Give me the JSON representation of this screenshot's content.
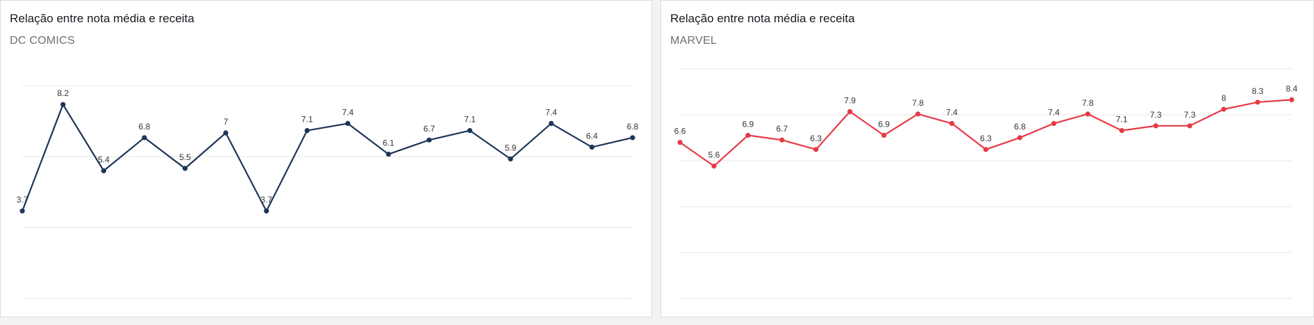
{
  "charts": [
    {
      "id": "dc",
      "title": "Relação entre nota média e receita",
      "subtitle": "DC COMICS",
      "color": "#1d3557"
    },
    {
      "id": "marvel",
      "title": "Relação entre nota média e receita",
      "subtitle": "MARVEL",
      "color": "#e63946"
    }
  ],
  "chart_data": [
    {
      "type": "line",
      "title": "Relação entre nota média e receita",
      "subtitle": "DC COMICS",
      "xlabel": "",
      "ylabel": "",
      "ylim": [
        2.5,
        9.5
      ],
      "grid": true,
      "series": [
        {
          "color": "#1d3557",
          "values": [
            3.7,
            8.2,
            5.4,
            6.8,
            5.5,
            7,
            3.7,
            7.1,
            7.4,
            6.1,
            6.7,
            7.1,
            5.9,
            7.4,
            6.4,
            6.8
          ],
          "labels": [
            "3.7",
            "8.2",
            "5.4",
            "6.8",
            "5.5",
            "7",
            "3.7",
            "7.1",
            "7.4",
            "6.1",
            "6.7",
            "7.1",
            "5.9",
            "7.4",
            "6.4",
            "6.8"
          ]
        }
      ]
    },
    {
      "type": "line",
      "title": "Relação entre nota média e receita",
      "subtitle": "MARVEL",
      "xlabel": "",
      "ylabel": "",
      "ylim": [
        2.5,
        9.5
      ],
      "grid": true,
      "series": [
        {
          "color": "#e63946",
          "values": [
            6.6,
            5.6,
            6.9,
            6.7,
            6.3,
            7.9,
            6.9,
            7.8,
            7.4,
            6.3,
            6.8,
            7.4,
            7.8,
            7.1,
            7.3,
            7.3,
            8,
            8.3,
            8.4
          ],
          "labels": [
            "6.6",
            "5.6",
            "6.9",
            "6.7",
            "6.3",
            "7.9",
            "6.9",
            "7.8",
            "7.4",
            "6.3",
            "6.8",
            "7.4",
            "7.8",
            "7.1",
            "7.3",
            "7.3",
            "8",
            "8.3",
            "8.4"
          ]
        }
      ]
    }
  ]
}
